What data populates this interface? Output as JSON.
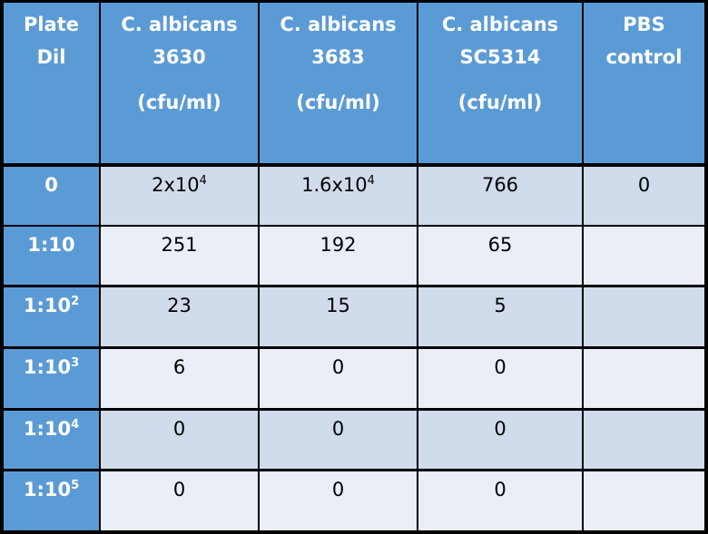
{
  "headers": [
    {
      "lines": [
        "Plate",
        "Dil"
      ],
      "unit": ""
    },
    {
      "lines": [
        "C. albicans",
        "3630"
      ],
      "unit": "(cfu/ml)"
    },
    {
      "lines": [
        "C. albicans",
        "3683"
      ],
      "unit": "(cfu/ml)"
    },
    {
      "lines": [
        "C. albicans",
        "SC5314"
      ],
      "unit": "(cfu/ml)"
    },
    {
      "lines": [
        "PBS",
        "control"
      ],
      "unit": ""
    }
  ],
  "rows": [
    {
      "dil": {
        "base": "0",
        "sup": ""
      },
      "vals": [
        {
          "base": "2x10",
          "sup": "4"
        },
        {
          "base": "1.6x10",
          "sup": "4"
        },
        {
          "base": "766",
          "sup": ""
        },
        {
          "base": "0",
          "sup": ""
        }
      ]
    },
    {
      "dil": {
        "base": "1:10",
        "sup": ""
      },
      "vals": [
        {
          "base": "251",
          "sup": ""
        },
        {
          "base": "192",
          "sup": ""
        },
        {
          "base": "65",
          "sup": ""
        },
        {
          "base": "",
          "sup": ""
        }
      ]
    },
    {
      "dil": {
        "base": "1:10",
        "sup": "2"
      },
      "vals": [
        {
          "base": "23",
          "sup": ""
        },
        {
          "base": "15",
          "sup": ""
        },
        {
          "base": "5",
          "sup": ""
        },
        {
          "base": "",
          "sup": ""
        }
      ]
    },
    {
      "dil": {
        "base": "1:10",
        "sup": "3"
      },
      "vals": [
        {
          "base": "6",
          "sup": ""
        },
        {
          "base": "0",
          "sup": ""
        },
        {
          "base": "0",
          "sup": ""
        },
        {
          "base": "",
          "sup": ""
        }
      ]
    },
    {
      "dil": {
        "base": "1:10",
        "sup": "4"
      },
      "vals": [
        {
          "base": "0",
          "sup": ""
        },
        {
          "base": "0",
          "sup": ""
        },
        {
          "base": "0",
          "sup": ""
        },
        {
          "base": "",
          "sup": ""
        }
      ]
    },
    {
      "dil": {
        "base": "1:10",
        "sup": "5"
      },
      "vals": [
        {
          "base": "0",
          "sup": ""
        },
        {
          "base": "0",
          "sup": ""
        },
        {
          "base": "0",
          "sup": ""
        },
        {
          "base": "",
          "sup": ""
        }
      ]
    }
  ]
}
